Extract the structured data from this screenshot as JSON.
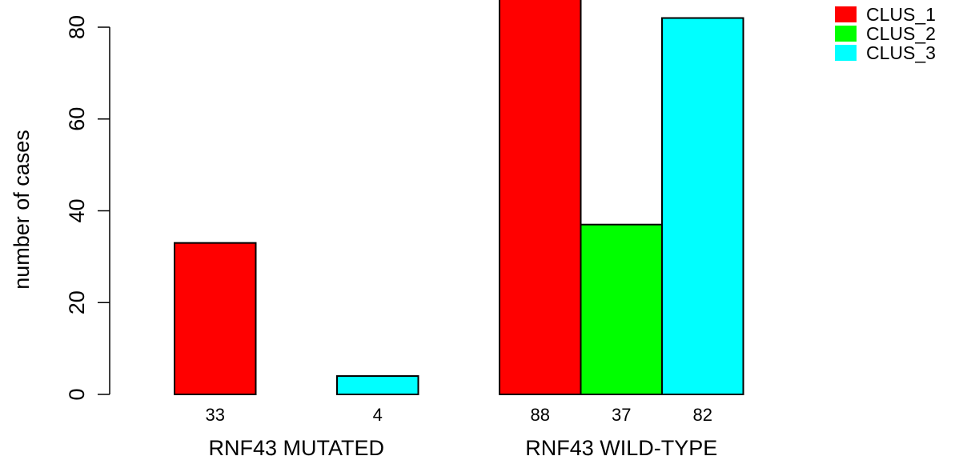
{
  "chart_data": {
    "type": "bar",
    "ylabel": "number of cases",
    "ylim": [
      0,
      88
    ],
    "yticks": [
      0,
      20,
      40,
      60,
      80
    ],
    "grid": false,
    "legend_position": "top-right",
    "groups": [
      {
        "label": "RNF43 MUTATED",
        "bars": [
          {
            "series": "CLUS_1",
            "value": 33,
            "count_label": "33"
          },
          {
            "series": "CLUS_2",
            "value": 0,
            "count_label": ""
          },
          {
            "series": "CLUS_3",
            "value": 4,
            "count_label": "4"
          }
        ]
      },
      {
        "label": "RNF43 WILD-TYPE",
        "bars": [
          {
            "series": "CLUS_1",
            "value": 88,
            "count_label": "88"
          },
          {
            "series": "CLUS_2",
            "value": 37,
            "count_label": "37"
          },
          {
            "series": "CLUS_3",
            "value": 82,
            "count_label": "82"
          }
        ]
      }
    ],
    "series": [
      {
        "name": "CLUS_1",
        "color": "#ff0000"
      },
      {
        "name": "CLUS_2",
        "color": "#00ff00"
      },
      {
        "name": "CLUS_3",
        "color": "#00ffff"
      }
    ]
  }
}
